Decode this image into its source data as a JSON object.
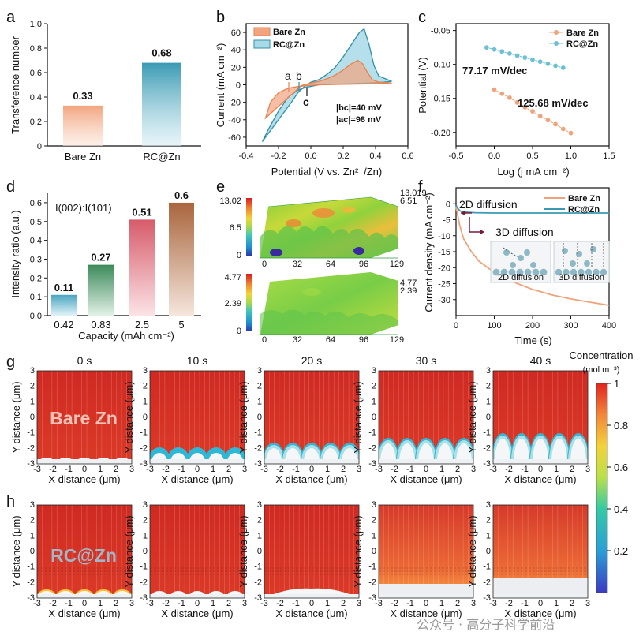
{
  "panel_letters": [
    "a",
    "b",
    "c",
    "d",
    "e",
    "f",
    "g",
    "h"
  ],
  "colors": {
    "bare": "#e8824f",
    "rc": "#2f90a8",
    "teal": "#3a9ab3",
    "orange": "#f0a27a",
    "green": "#3c8a5a",
    "red": "#d75b6a",
    "brown": "#a9653d"
  },
  "chart_data": [
    {
      "id": "a",
      "type": "bar",
      "categories": [
        "Bare Zn",
        "RC@Zn"
      ],
      "values": [
        0.33,
        0.68
      ],
      "value_labels": [
        "0.33",
        "0.68"
      ],
      "ylabel": "Transference number",
      "ylim": [
        0,
        1.0
      ],
      "yticks": [
        "0",
        "0.2",
        "0.4",
        "0.6",
        "0.8",
        "1.0"
      ]
    },
    {
      "id": "b",
      "type": "line",
      "xlabel": "Potential (V vs. Zn²⁺/Zn)",
      "ylabel": "Current (mA cm⁻²)",
      "xlim": [
        -0.4,
        0.6
      ],
      "ylim": [
        -70,
        70
      ],
      "xticks": [
        "-0.4",
        "-0.2",
        "0.0",
        "0.2",
        "0.4",
        "0.6"
      ],
      "yticks": [
        "-60",
        "-40",
        "-20",
        "0",
        "20",
        "40",
        "60"
      ],
      "series": [
        {
          "name": "Bare Zn",
          "points": [
            [
              -0.28,
              -38
            ],
            [
              -0.22,
              -28
            ],
            [
              -0.16,
              -18
            ],
            [
              -0.1,
              -8
            ],
            [
              -0.06,
              -1
            ],
            [
              0.0,
              2
            ],
            [
              0.05,
              4
            ],
            [
              0.1,
              7
            ],
            [
              0.15,
              11
            ],
            [
              0.2,
              17
            ],
            [
              0.25,
              24
            ],
            [
              0.29,
              28
            ],
            [
              0.32,
              24
            ],
            [
              0.35,
              14
            ],
            [
              0.38,
              6
            ],
            [
              0.42,
              3
            ],
            [
              0.5,
              2
            ],
            [
              0.45,
              1.5
            ],
            [
              0.35,
              1
            ],
            [
              0.2,
              0.5
            ],
            [
              0.05,
              0
            ],
            [
              -0.02,
              -1
            ],
            [
              -0.08,
              -2
            ],
            [
              -0.14,
              -4
            ],
            [
              -0.2,
              -9
            ],
            [
              -0.25,
              -20
            ],
            [
              -0.28,
              -38
            ]
          ]
        },
        {
          "name": "RC@Zn",
          "points": [
            [
              -0.3,
              -65
            ],
            [
              -0.24,
              -50
            ],
            [
              -0.18,
              -35
            ],
            [
              -0.12,
              -20
            ],
            [
              -0.08,
              -9
            ],
            [
              -0.04,
              -2
            ],
            [
              0.0,
              3
            ],
            [
              0.05,
              6
            ],
            [
              0.1,
              12
            ],
            [
              0.15,
              20
            ],
            [
              0.2,
              32
            ],
            [
              0.25,
              46
            ],
            [
              0.3,
              60
            ],
            [
              0.33,
              64
            ],
            [
              0.36,
              46
            ],
            [
              0.39,
              22
            ],
            [
              0.42,
              10
            ],
            [
              0.5,
              4
            ],
            [
              0.45,
              3
            ],
            [
              0.35,
              2
            ],
            [
              0.2,
              1
            ],
            [
              0.05,
              0
            ],
            [
              -0.03,
              -3
            ],
            [
              -0.08,
              -6
            ],
            [
              -0.14,
              -14
            ],
            [
              -0.2,
              -30
            ],
            [
              -0.26,
              -50
            ],
            [
              -0.3,
              -65
            ]
          ]
        }
      ],
      "legend": [
        "Bare Zn",
        "RC@Zn"
      ],
      "annotations": {
        "a": "a",
        "b": "b",
        "c": "c",
        "bc": "|bc|=40 mV",
        "ac": "|ac|=98 mV"
      }
    },
    {
      "id": "c",
      "type": "scatter",
      "xlabel": "Log (j mA cm⁻²)",
      "ylabel": "Potential (V)",
      "xlim": [
        -0.5,
        1.5
      ],
      "ylim": [
        -0.22,
        -0.04
      ],
      "xticks": [
        "-0.5",
        "0.0",
        "0.5",
        "1.0",
        "1.5"
      ],
      "yticks": [
        "-0.20",
        "-0.15",
        "-0.10",
        "-0.05"
      ],
      "series": [
        {
          "name": "Bare Zn",
          "x": [
            0.0,
            0.1,
            0.2,
            0.3,
            0.4,
            0.5,
            0.6,
            0.7,
            0.8,
            0.9,
            1.0
          ],
          "y": [
            -0.137,
            -0.143,
            -0.149,
            -0.156,
            -0.163,
            -0.169,
            -0.176,
            -0.182,
            -0.188,
            -0.195,
            -0.201
          ]
        },
        {
          "name": "RC@Zn",
          "x": [
            -0.1,
            0.0,
            0.1,
            0.2,
            0.3,
            0.4,
            0.5,
            0.6,
            0.7,
            0.8,
            0.9
          ],
          "y": [
            -0.075,
            -0.078,
            -0.081,
            -0.084,
            -0.087,
            -0.09,
            -0.093,
            -0.096,
            -0.099,
            -0.102,
            -0.105
          ]
        }
      ],
      "legend": [
        "Bare Zn",
        "RC@Zn"
      ],
      "annotations": {
        "rc": "77.17 mV/dec",
        "bare": "125.68 mV/dec"
      }
    },
    {
      "id": "d",
      "type": "bar",
      "categories": [
        "0.42",
        "0.83",
        "2.5",
        "5"
      ],
      "values": [
        0.11,
        0.27,
        0.51,
        0.6
      ],
      "value_labels": [
        "0.11",
        "0.27",
        "0.51",
        "0.6"
      ],
      "xlabel": "Capacity (mAh cm⁻²)",
      "ylabel": "Intensity ratio (a.u.)",
      "ylim": [
        0,
        0.65
      ],
      "yticks": [
        "0.0",
        "0.1",
        "0.2",
        "0.3",
        "0.4",
        "0.5",
        "0.6"
      ],
      "inset_label": "I(002):I(101)"
    },
    {
      "id": "e",
      "type": "heatmap",
      "top": {
        "scale": [
          "13.02",
          "6.5",
          "0"
        ],
        "corner": [
          "13.019",
          "6.51"
        ]
      },
      "bottom": {
        "scale": [
          "4.77",
          "2.39",
          "0"
        ],
        "corner": [
          "4.77",
          "2.39"
        ]
      },
      "xticks": [
        "0",
        "32",
        "64",
        "96",
        "129"
      ]
    },
    {
      "id": "f",
      "type": "line",
      "xlabel": "Time (s)",
      "ylabel": "Current density (mA cm⁻²)",
      "xlim": [
        0,
        400
      ],
      "ylim": [
        -35,
        5
      ],
      "xticks": [
        "0",
        "100",
        "200",
        "300",
        "400"
      ],
      "yticks": [
        "-30",
        "-25",
        "-20",
        "-15",
        "-10",
        "-5",
        "0"
      ],
      "series": [
        {
          "name": "Bare Zn",
          "points": [
            [
              0,
              -1
            ],
            [
              5,
              -4
            ],
            [
              10,
              -7
            ],
            [
              20,
              -11
            ],
            [
              40,
              -15
            ],
            [
              60,
              -18
            ],
            [
              100,
              -21.5
            ],
            [
              150,
              -24.5
            ],
            [
              200,
              -26.8
            ],
            [
              250,
              -28.5
            ],
            [
              300,
              -29.8
            ],
            [
              350,
              -30.8
            ],
            [
              400,
              -31.8
            ]
          ]
        },
        {
          "name": "RC@Zn",
          "points": [
            [
              0,
              -0.5
            ],
            [
              5,
              -1.5
            ],
            [
              10,
              -2.2
            ],
            [
              20,
              -2.6
            ],
            [
              50,
              -2.8
            ],
            [
              100,
              -2.9
            ],
            [
              200,
              -2.9
            ],
            [
              300,
              -2.9
            ],
            [
              400,
              -2.9
            ]
          ]
        }
      ],
      "legend": [
        "Bare Zn",
        "RC@Zn"
      ],
      "annotations": {
        "d2": "2D diffusion",
        "d3": "3D diffusion",
        "inset1": "2D diffusion",
        "inset2": "3D diffusion"
      }
    }
  ],
  "sim": {
    "times": [
      "0 s",
      "10 s",
      "20 s",
      "30 s",
      "40 s"
    ],
    "row_g_label": "Bare Zn",
    "row_h_label": "RC@Zn",
    "xlabel": "X distance (μm)",
    "ylabel": "Y distance (μm)",
    "ticks": [
      "-3",
      "-2",
      "-1",
      "0",
      "1",
      "2",
      "3"
    ],
    "colorbar_title": "Concentration",
    "colorbar_unit": "(mol m⁻³)",
    "colorbar_ticks": [
      "1",
      "0.8",
      "0.6",
      "0.4",
      "0.2"
    ]
  },
  "watermark": "公众号 · 高分子科学前沿"
}
